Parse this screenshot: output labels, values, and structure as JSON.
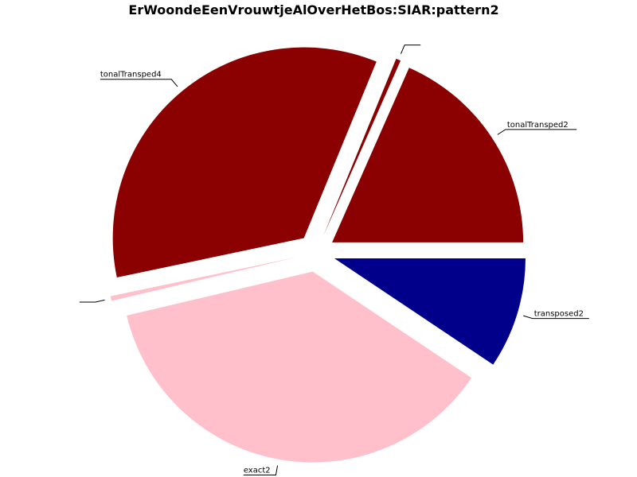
{
  "chart_data": {
    "type": "pie",
    "title": "ErWoondeEenVrouwtjeAlOverHetBos:SIAR:pattern2",
    "slices": [
      {
        "label": "tonalTransped2",
        "value": 18.4,
        "color": "#8b0000"
      },
      {
        "label": "",
        "value": 0.4,
        "color": "#8b0000"
      },
      {
        "label": "tonalTransped4",
        "value": 34.5,
        "color": "#8b0000"
      },
      {
        "label": "",
        "value": 0.4,
        "color": "#ffc0cb"
      },
      {
        "label": "exact2",
        "value": 36.9,
        "color": "#ffc0cb"
      },
      {
        "label": "transposed2",
        "value": 9.4,
        "color": "#00008b"
      }
    ],
    "legend": "none"
  }
}
